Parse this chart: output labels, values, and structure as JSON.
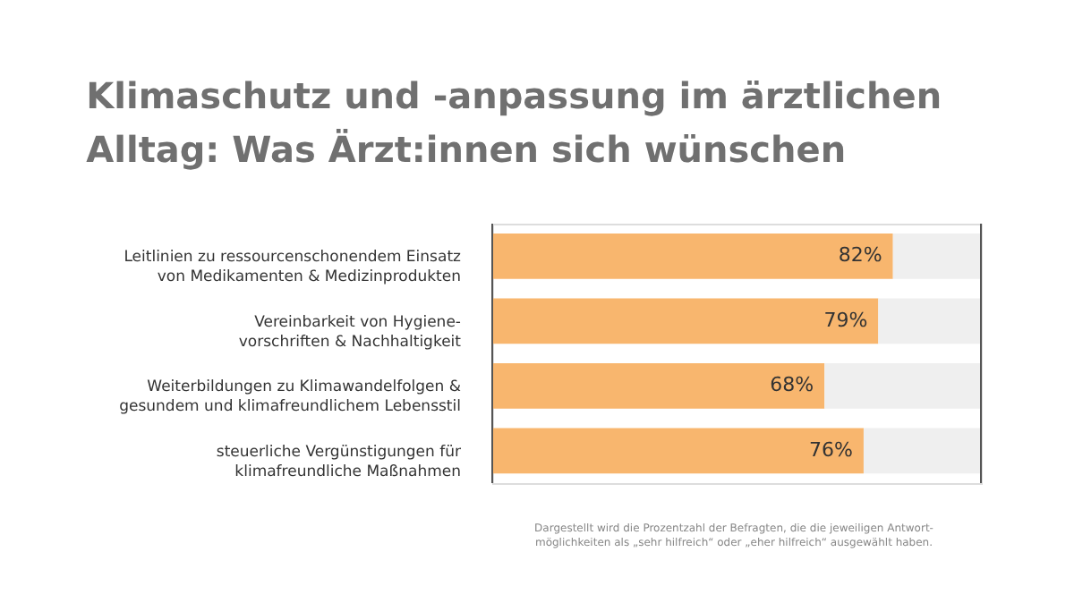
{
  "chart_data": {
    "type": "bar",
    "orientation": "horizontal",
    "stacked": true,
    "title": "Klimaschutz und -anpassung im ärztlichen\nAlltag: Was Ärzt:innen sich wünschen",
    "categories": [
      "Leitlinien zu ressourcenschonendem Einsatz\nvon Medikamenten & Medizinprodukten",
      "Vereinbarkeit von Hygiene-\nvorschriften & Nachhaltigkeit",
      "Weiterbildungen zu Klimawandelfolgen &\ngesundem und klimafreundlichem Lebensstil",
      "steuerliche Vergünstigungen für\nklimafreundliche Maßnahmen"
    ],
    "series": [
      {
        "color": "#f8b66e",
        "values": [
          82,
          79,
          68,
          76
        ],
        "value_labels": [
          "82%",
          "79%",
          "68%",
          "76%"
        ]
      },
      {
        "color": "#efefef",
        "values": [
          18,
          21,
          32,
          24
        ]
      }
    ],
    "xlim": [
      0,
      100
    ],
    "tick_labels": "y",
    "grid": false,
    "annotations": [
      "Dargestellt wird die Prozentzahl der Befragten, die die jeweiligen Antwort-\nmöglichkeiten als „sehr hilfreich“ oder „eher hilfreich“ ausgewählt haben."
    ]
  }
}
